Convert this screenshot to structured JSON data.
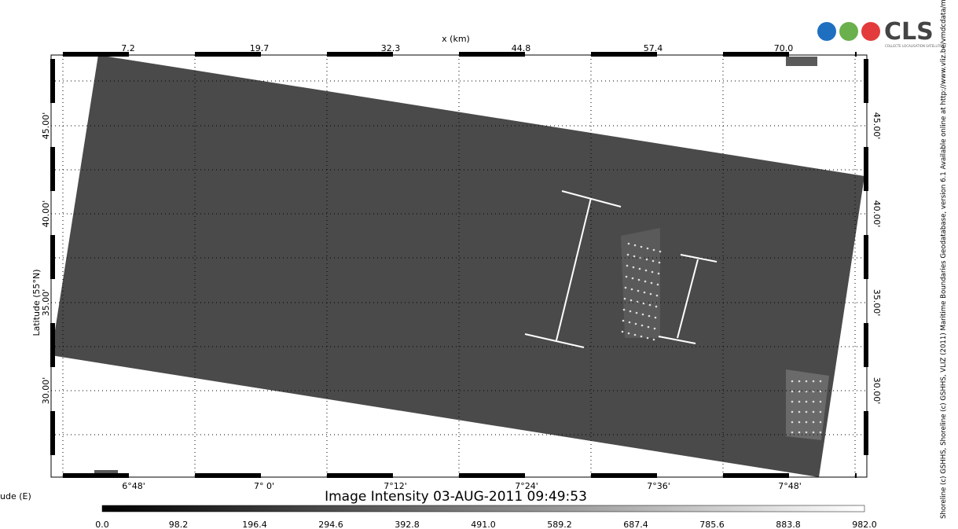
{
  "logo": {
    "text": "CLS",
    "tagline": "COLLECTE LOCALISATION SATELLITES"
  },
  "map": {
    "top_axis_label": "x (km)",
    "top_ticks": [
      "7.2",
      "19.7",
      "32.3",
      "44.8",
      "57.4",
      "70.0"
    ],
    "bottom_ticks": [
      "6°48'",
      "7° 0'",
      "7°12'",
      "7°24'",
      "7°36'",
      "7°48'"
    ],
    "bottom_axis_label": "ude (E)",
    "left_axis_label": "Latitude (55°N)",
    "left_ticks": [
      "45.00'",
      "40.00'",
      "35.00'",
      "30.00'"
    ],
    "right_ticks": [
      "45.00'",
      "40.00'",
      "35.00'",
      "30.00'"
    ]
  },
  "title": "Image Intensity 03-AUG-2011 09:49:53",
  "colorbar": {
    "ticks": [
      "0.0",
      "98.2",
      "196.4",
      "294.6",
      "392.8",
      "491.0",
      "589.2",
      "687.4",
      "785.6",
      "883.8",
      "982.0"
    ]
  },
  "credit": "Shoreline (c) GSHHS, Shoreline (c) GSHHS, VLIZ (2011) Maritime Boundaries Geodatabase, version 6.1 Available online at http://www.vliz.be/vmdcdata/marbound"
}
